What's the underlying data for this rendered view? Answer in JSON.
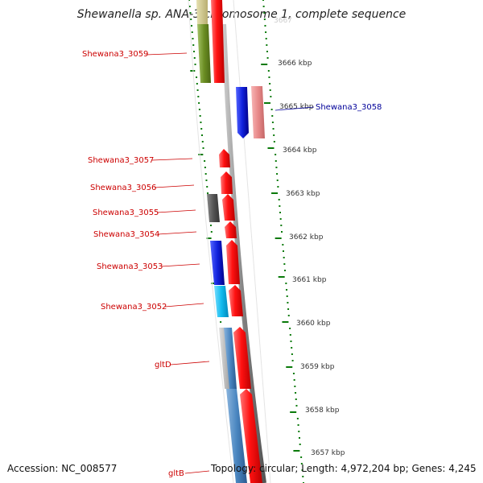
{
  "title": "Shewanella sp. ANA-3 chromosome 1, complete sequence",
  "accession": "Accession: NC_008577",
  "topology": "Topology: circular; Length: 4,972,204 bp; Genes: 4,245",
  "partial_top_label": "3667",
  "scale_labels": [
    "3666 kbp",
    "3665 kbp",
    "3664 kbp",
    "3663 kbp",
    "3662 kbp",
    "3661 kbp",
    "3660 kbp",
    "3659 kbp",
    "3658 kbp",
    "3657 kbp"
  ],
  "genes": [
    {
      "name": "Shewana3_3059",
      "color": "#cc0000"
    },
    {
      "name": "Shewana3_3058",
      "color": "#000099"
    },
    {
      "name": "Shewana3_3057",
      "color": "#cc0000"
    },
    {
      "name": "Shewana3_3056",
      "color": "#cc0000"
    },
    {
      "name": "Shewana3_3055",
      "color": "#cc0000"
    },
    {
      "name": "Shewana3_3054",
      "color": "#cc0000"
    },
    {
      "name": "Shewana3_3053",
      "color": "#cc0000"
    },
    {
      "name": "Shewana3_3052",
      "color": "#cc0000"
    },
    {
      "name": "gltD",
      "color": "#cc0000"
    },
    {
      "name": "gltB",
      "color": "#cc0000"
    }
  ],
  "feature_colors": {
    "cds_red": "#ee1111",
    "cds_pink": "#e88a8a",
    "cds_blue": "#1122dd",
    "cds_cyan": "#11bbee",
    "cds_steel": "#4a86c0",
    "cds_olive": "#6b8e23",
    "cds_gray": "#555555",
    "cds_lightgray": "#bbbbbb",
    "backbone": "#8a8a8a",
    "ticks": "#0a7a0a"
  }
}
